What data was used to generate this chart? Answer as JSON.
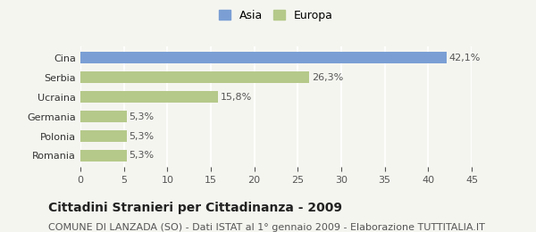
{
  "categories": [
    "Romania",
    "Polonia",
    "Germania",
    "Ucraina",
    "Serbia",
    "Cina"
  ],
  "values": [
    5.3,
    5.3,
    5.3,
    15.8,
    26.3,
    42.1
  ],
  "labels": [
    "5,3%",
    "5,3%",
    "5,3%",
    "15,8%",
    "26,3%",
    "42,1%"
  ],
  "colors": [
    "#b5c98a",
    "#b5c98a",
    "#b5c98a",
    "#b5c98a",
    "#b5c98a",
    "#7b9fd4"
  ],
  "legend": [
    {
      "label": "Asia",
      "color": "#7b9fd4"
    },
    {
      "label": "Europa",
      "color": "#b5c98a"
    }
  ],
  "xlim": [
    0,
    45
  ],
  "xticks": [
    0,
    5,
    10,
    15,
    20,
    25,
    30,
    35,
    40,
    45
  ],
  "title": "Cittadini Stranieri per Cittadinanza - 2009",
  "subtitle": "COMUNE DI LANZADA (SO) - Dati ISTAT al 1° gennaio 2009 - Elaborazione TUTTITALIA.IT",
  "background_color": "#f5f5f0",
  "bar_height": 0.6,
  "grid_color": "#ffffff",
  "title_fontsize": 10,
  "subtitle_fontsize": 8,
  "label_fontsize": 8,
  "tick_fontsize": 8,
  "legend_fontsize": 9
}
